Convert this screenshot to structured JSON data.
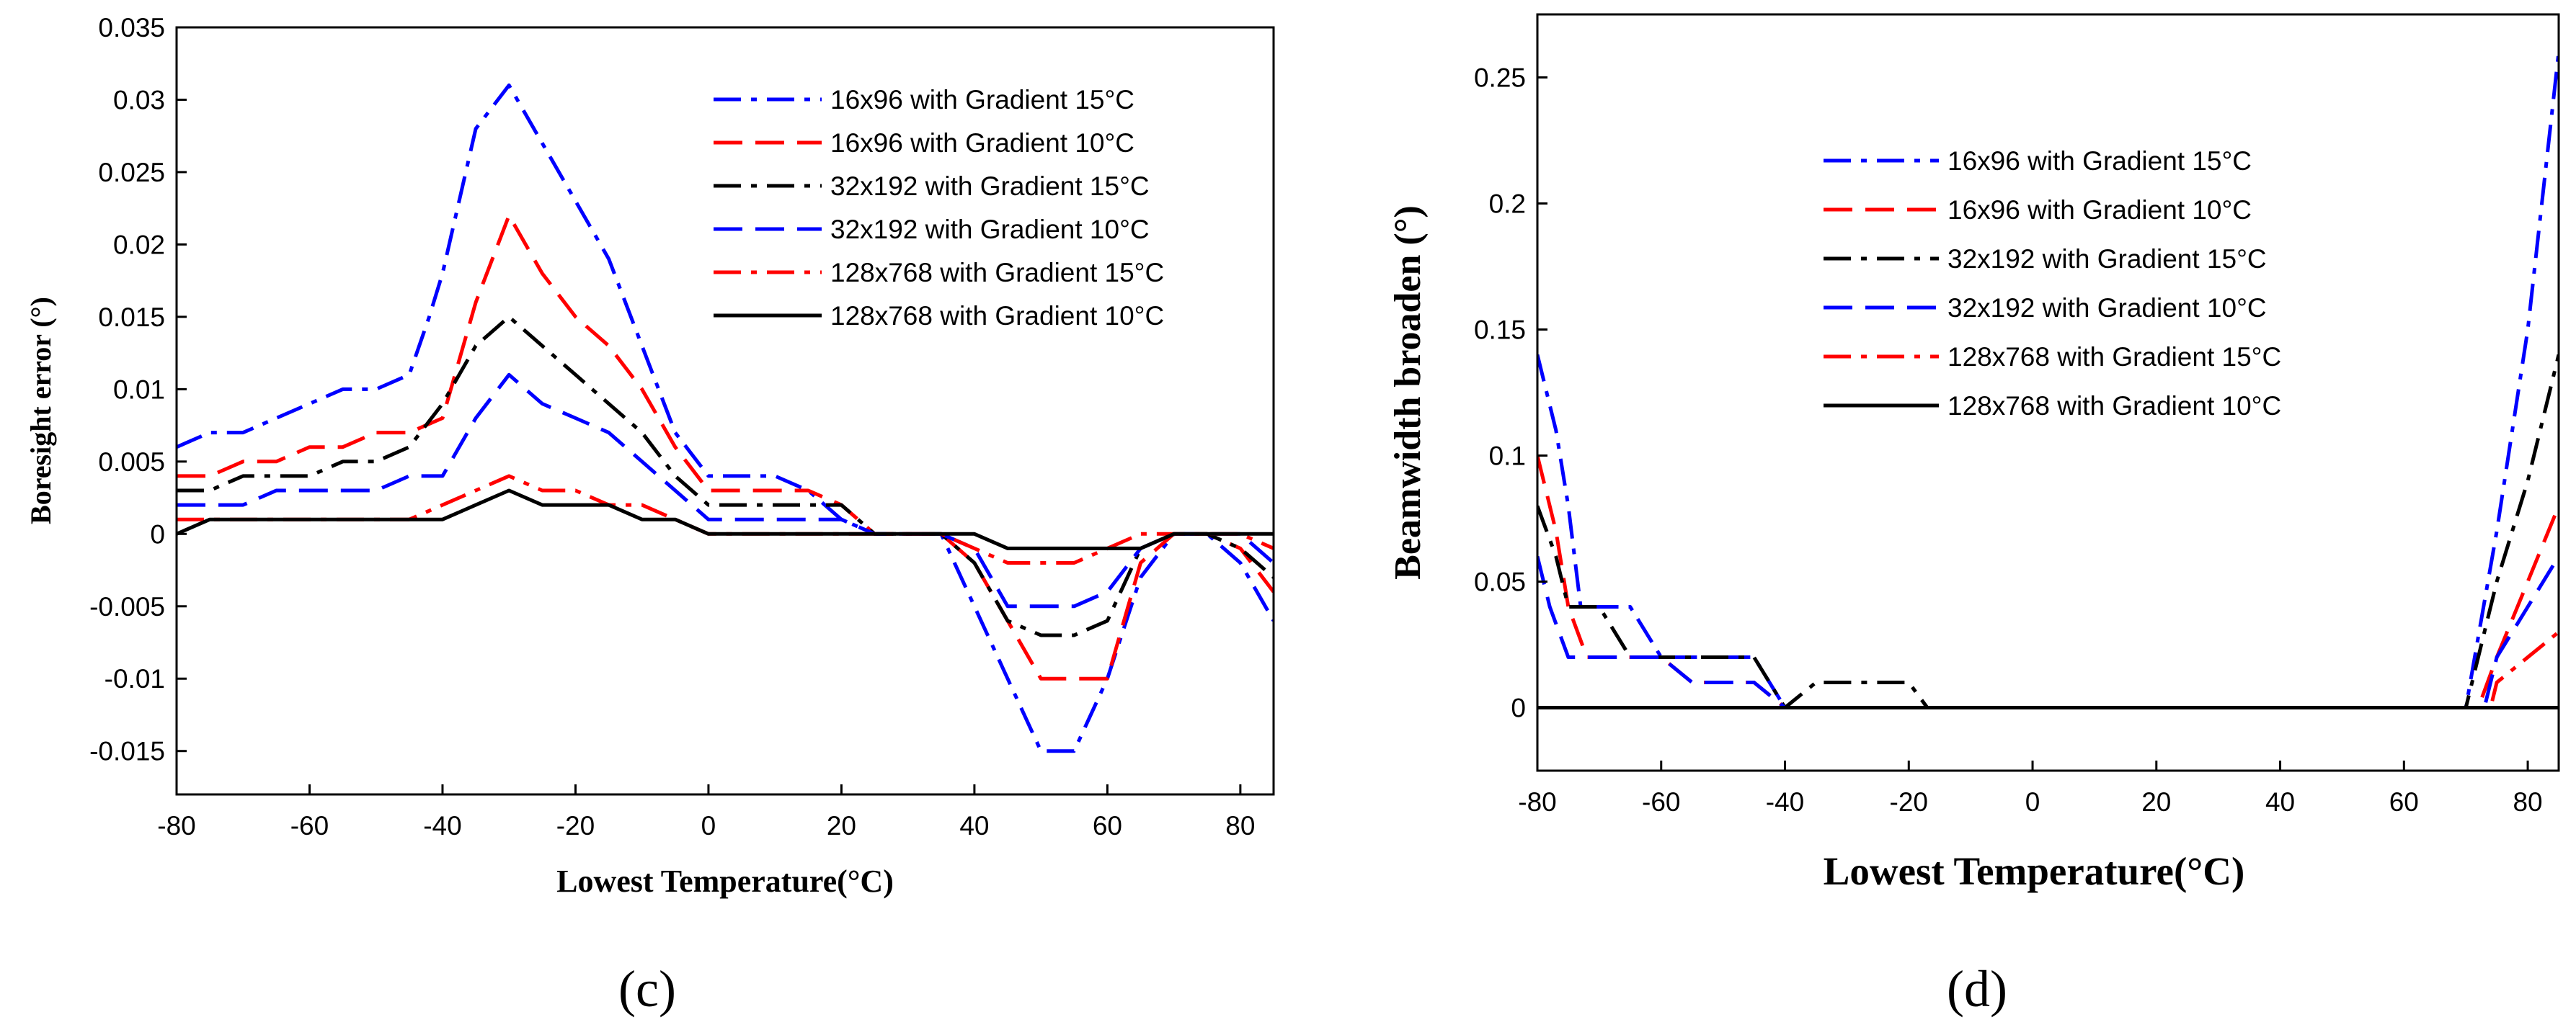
{
  "chart_data": [
    {
      "type": "line",
      "panel_label": "(c)",
      "xlabel": "Lowest Temperature(°C)",
      "ylabel": "Boresight error (°)",
      "xlim": [
        -80,
        85
      ],
      "ylim": [
        -0.018,
        0.035
      ],
      "xticks": [
        -80,
        -60,
        -40,
        -20,
        0,
        20,
        40,
        60,
        80
      ],
      "xtick_labels": [
        "-80",
        "-60",
        "-40",
        "-20",
        "0",
        "20",
        "40",
        "60",
        "80"
      ],
      "yticks": [
        -0.015,
        -0.01,
        -0.005,
        0,
        0.005,
        0.01,
        0.015,
        0.02,
        0.025,
        0.03,
        0.035
      ],
      "ytick_labels": [
        "-0.015",
        "-0.01",
        "-0.005",
        "0",
        "0.005",
        "0.01",
        "0.015",
        "0.02",
        "0.025",
        "0.03",
        "0.035"
      ],
      "grid": false,
      "legend_position": "top-right",
      "series": [
        {
          "name": "16x96 with Gradient 15°C",
          "color": "#0000ff",
          "dash": "dashdot",
          "x": [
            -80,
            -75,
            -70,
            -65,
            -60,
            -55,
            -50,
            -45,
            -42,
            -40,
            -38,
            -35,
            -30,
            -25,
            -20,
            -15,
            -10,
            -5,
            0,
            5,
            10,
            15,
            20,
            25,
            30,
            35,
            40,
            45,
            50,
            55,
            60,
            65,
            70,
            75,
            80,
            85
          ],
          "y": [
            0.006,
            0.007,
            0.007,
            0.008,
            0.009,
            0.01,
            0.01,
            0.011,
            0.015,
            0.018,
            0.022,
            0.028,
            0.031,
            0.027,
            0.023,
            0.019,
            0.013,
            0.007,
            0.004,
            0.004,
            0.004,
            0.003,
            0.001,
            0,
            0,
            0,
            -0.005,
            -0.01,
            -0.015,
            -0.015,
            -0.01,
            -0.003,
            0,
            0,
            -0.002,
            -0.006
          ]
        },
        {
          "name": "16x96 with Gradient 10°C",
          "color": "#ff0000",
          "dash": "dashed",
          "x": [
            -80,
            -75,
            -70,
            -65,
            -60,
            -55,
            -50,
            -45,
            -40,
            -35,
            -30,
            -25,
            -20,
            -15,
            -10,
            -5,
            0,
            5,
            10,
            15,
            20,
            25,
            30,
            35,
            40,
            45,
            50,
            55,
            60,
            65,
            70,
            75,
            80,
            85
          ],
          "y": [
            0.004,
            0.004,
            0.005,
            0.005,
            0.006,
            0.006,
            0.007,
            0.007,
            0.008,
            0.016,
            0.022,
            0.018,
            0.015,
            0.013,
            0.01,
            0.006,
            0.003,
            0.003,
            0.003,
            0.003,
            0.002,
            0,
            0,
            0,
            -0.002,
            -0.006,
            -0.01,
            -0.01,
            -0.01,
            -0.002,
            0,
            0,
            -0.001,
            -0.004
          ]
        },
        {
          "name": "32x192 with Gradient 15°C",
          "color": "#000000",
          "dash": "dashdot",
          "x": [
            -80,
            -75,
            -70,
            -65,
            -60,
            -55,
            -50,
            -45,
            -40,
            -35,
            -30,
            -25,
            -20,
            -15,
            -10,
            -5,
            0,
            5,
            10,
            15,
            20,
            25,
            30,
            35,
            40,
            45,
            50,
            55,
            60,
            65,
            70,
            75,
            80,
            85
          ],
          "y": [
            0.003,
            0.003,
            0.004,
            0.004,
            0.004,
            0.005,
            0.005,
            0.006,
            0.009,
            0.013,
            0.015,
            0.013,
            0.011,
            0.009,
            0.007,
            0.004,
            0.002,
            0.002,
            0.002,
            0.002,
            0.002,
            0,
            0,
            0,
            -0.002,
            -0.006,
            -0.007,
            -0.007,
            -0.006,
            -0.001,
            0,
            0,
            -0.001,
            -0.003
          ]
        },
        {
          "name": "32x192 with Gradient 10°C",
          "color": "#0000ff",
          "dash": "dashed",
          "x": [
            -80,
            -75,
            -70,
            -65,
            -60,
            -55,
            -50,
            -45,
            -40,
            -35,
            -30,
            -25,
            -20,
            -15,
            -10,
            -5,
            0,
            5,
            10,
            15,
            20,
            25,
            30,
            35,
            40,
            45,
            50,
            55,
            60,
            65,
            70,
            75,
            80,
            85
          ],
          "y": [
            0.002,
            0.002,
            0.002,
            0.003,
            0.003,
            0.003,
            0.003,
            0.004,
            0.004,
            0.008,
            0.011,
            0.009,
            0.008,
            0.007,
            0.005,
            0.003,
            0.001,
            0.001,
            0.001,
            0.001,
            0.001,
            0,
            0,
            0,
            -0.001,
            -0.005,
            -0.005,
            -0.005,
            -0.004,
            -0.001,
            0,
            0,
            0,
            -0.002
          ]
        },
        {
          "name": "128x768 with Gradient 15°C",
          "color": "#ff0000",
          "dash": "dashdot",
          "x": [
            -80,
            -75,
            -70,
            -65,
            -60,
            -55,
            -50,
            -45,
            -40,
            -35,
            -30,
            -25,
            -20,
            -15,
            -10,
            -5,
            0,
            5,
            10,
            15,
            20,
            25,
            30,
            35,
            40,
            45,
            50,
            55,
            60,
            65,
            70,
            75,
            80,
            85
          ],
          "y": [
            0.001,
            0.001,
            0.001,
            0.001,
            0.001,
            0.001,
            0.001,
            0.001,
            0.002,
            0.003,
            0.004,
            0.003,
            0.003,
            0.002,
            0.002,
            0.001,
            0,
            0,
            0,
            0,
            0,
            0,
            0,
            0,
            -0.001,
            -0.002,
            -0.002,
            -0.002,
            -0.001,
            0,
            0,
            0,
            0,
            -0.001
          ]
        },
        {
          "name": "128x768 with Gradient 10°C",
          "color": "#000000",
          "dash": "solid",
          "x": [
            -80,
            -75,
            -70,
            -65,
            -60,
            -55,
            -50,
            -45,
            -40,
            -35,
            -30,
            -25,
            -20,
            -15,
            -10,
            -5,
            0,
            5,
            10,
            15,
            20,
            25,
            30,
            35,
            40,
            45,
            50,
            55,
            60,
            65,
            70,
            75,
            80,
            85
          ],
          "y": [
            0,
            0.001,
            0.001,
            0.001,
            0.001,
            0.001,
            0.001,
            0.001,
            0.001,
            0.002,
            0.003,
            0.002,
            0.002,
            0.002,
            0.001,
            0.001,
            0,
            0,
            0,
            0,
            0,
            0,
            0,
            0,
            0,
            -0.001,
            -0.001,
            -0.001,
            -0.001,
            -0.001,
            0,
            0,
            0,
            0
          ]
        }
      ]
    },
    {
      "type": "line",
      "panel_label": "(d)",
      "xlabel": "Lowest Temperature(°C)",
      "ylabel": "Beamwidth broaden (°)",
      "xlim": [
        -80,
        85
      ],
      "ylim": [
        -0.025,
        0.275
      ],
      "xticks": [
        -80,
        -60,
        -40,
        -20,
        0,
        20,
        40,
        60,
        80
      ],
      "xtick_labels": [
        "-80",
        "-60",
        "-40",
        "-20",
        "0",
        "20",
        "40",
        "60",
        "80"
      ],
      "yticks": [
        0,
        0.05,
        0.1,
        0.15,
        0.2,
        0.25
      ],
      "ytick_labels": [
        "0",
        "0.05",
        "0.1",
        "0.15",
        "0.2",
        "0.25"
      ],
      "grid": false,
      "legend_position": "top-right",
      "series": [
        {
          "name": "16x96 with Gradient 15°C",
          "color": "#0000ff",
          "dash": "dashdot",
          "x": [
            -80,
            -77,
            -75,
            -73,
            -70,
            -65,
            -60,
            -55,
            -50,
            -45,
            -40,
            -35,
            -30,
            -25,
            -20,
            -15,
            0,
            20,
            40,
            60,
            70,
            75,
            80,
            85
          ],
          "y": [
            0.14,
            0.11,
            0.08,
            0.04,
            0.04,
            0.04,
            0.02,
            0.02,
            0.02,
            0.02,
            0,
            0,
            0,
            0,
            0,
            0,
            0,
            0,
            0,
            0,
            0,
            0.07,
            0.15,
            0.26
          ]
        },
        {
          "name": "16x96 with Gradient 10°C",
          "color": "#ff0000",
          "dash": "dashed",
          "x": [
            -80,
            -77,
            -75,
            -72,
            -70,
            -65,
            -60,
            -55,
            -50,
            -45,
            -40,
            -35,
            -30,
            0,
            20,
            40,
            60,
            70,
            72,
            75,
            80,
            85
          ],
          "y": [
            0.1,
            0.07,
            0.04,
            0.02,
            0.02,
            0.02,
            0.02,
            0.01,
            0.01,
            0.01,
            0,
            0,
            0,
            0,
            0,
            0,
            0,
            0,
            0,
            0.02,
            0.05,
            0.08
          ]
        },
        {
          "name": "32x192 with Gradient 15°C",
          "color": "#000000",
          "dash": "dashdot",
          "x": [
            -80,
            -77,
            -75,
            -72,
            -70,
            -65,
            -60,
            -55,
            -50,
            -45,
            -40,
            -35,
            -30,
            -25,
            -20,
            -17,
            0,
            20,
            40,
            60,
            70,
            75,
            80,
            85
          ],
          "y": [
            0.08,
            0.06,
            0.04,
            0.04,
            0.04,
            0.02,
            0.02,
            0.02,
            0.02,
            0.02,
            0,
            0.01,
            0.01,
            0.01,
            0.01,
            0,
            0,
            0,
            0,
            0,
            0,
            0.05,
            0.09,
            0.14
          ]
        },
        {
          "name": "32x192 with Gradient 10°C",
          "color": "#0000ff",
          "dash": "dashed",
          "x": [
            -80,
            -78,
            -75,
            -72,
            -70,
            -65,
            -60,
            -55,
            -50,
            -45,
            -40,
            -35,
            0,
            20,
            40,
            60,
            70,
            73,
            75,
            80,
            85
          ],
          "y": [
            0.06,
            0.04,
            0.02,
            0.02,
            0.02,
            0.02,
            0.02,
            0.01,
            0.01,
            0.01,
            0,
            0,
            0,
            0,
            0,
            0,
            0,
            0,
            0.02,
            0.04,
            0.06
          ]
        },
        {
          "name": "128x768 with Gradient 15°C",
          "color": "#ff0000",
          "dash": "dashdot",
          "x": [
            -80,
            -60,
            -40,
            -20,
            0,
            20,
            40,
            60,
            70,
            74,
            75,
            80,
            85
          ],
          "y": [
            0,
            0,
            0,
            0,
            0,
            0,
            0,
            0,
            0,
            0,
            0.01,
            0.02,
            0.03
          ]
        },
        {
          "name": "128x768 with Gradient 10°C",
          "color": "#000000",
          "dash": "solid",
          "x": [
            -80,
            -60,
            -40,
            -20,
            0,
            20,
            40,
            60,
            80,
            85
          ],
          "y": [
            0,
            0,
            0,
            0,
            0,
            0,
            0,
            0,
            0,
            0
          ]
        }
      ]
    }
  ]
}
